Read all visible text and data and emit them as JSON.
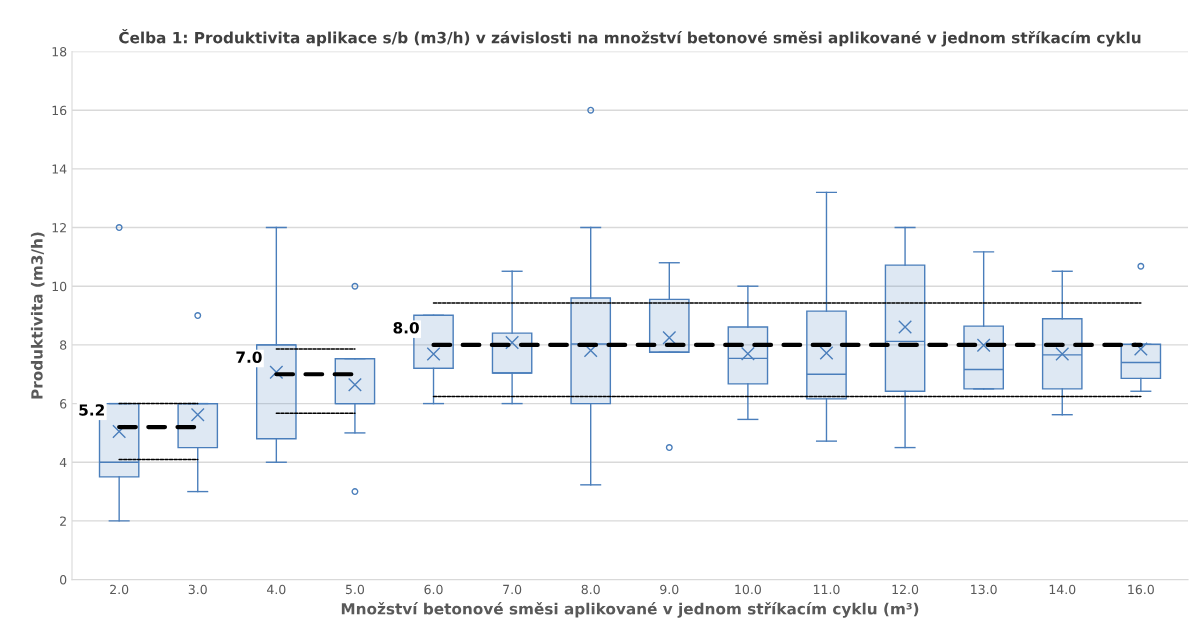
{
  "chart_data": {
    "type": "box",
    "title": "Čelba 1: Produktivita aplikace s/b (m3/h) v závislosti na množství betonové směsi aplikované v jednom stříkacím cyklu",
    "xlabel": "Množství betonové směsi aplikované v jednom stříkacím cyklu (m³)",
    "ylabel": "Produktivita (m3/h)",
    "categories": [
      "2.0",
      "3.0",
      "4.0",
      "5.0",
      "6.0",
      "7.0",
      "8.0",
      "9.0",
      "10.0",
      "11.0",
      "12.0",
      "13.0",
      "14.0",
      "16.0"
    ],
    "color": "#4a7ebb",
    "boxes": [
      {
        "low": 2.0,
        "q1": 3.5,
        "median": 4.0,
        "q3": 6.0,
        "high": 6.0,
        "mean": 5.05,
        "outliers": [
          12.0
        ]
      },
      {
        "low": 3.0,
        "q1": 4.5,
        "median": 6.0,
        "q3": 6.0,
        "high": 6.0,
        "mean": 5.62,
        "outliers": [
          9.0
        ]
      },
      {
        "low": 4.0,
        "q1": 4.8,
        "median": 8.0,
        "q3": 8.0,
        "high": 12.0,
        "mean": 7.07
      },
      {
        "low": 5.0,
        "q1": 6.0,
        "median": 6.0,
        "q3": 7.53,
        "high": 7.53,
        "mean": 6.64,
        "outliers": [
          10.0,
          3.0
        ]
      },
      {
        "low": 6.0,
        "q1": 7.2,
        "median": 7.2,
        "q3": 9.01,
        "high": 9.01,
        "mean": 7.69
      },
      {
        "low": 6.0,
        "q1": 7.04,
        "median": 7.04,
        "q3": 8.4,
        "high": 10.51,
        "mean": 8.08
      },
      {
        "low": 3.23,
        "q1": 6.0,
        "median": 8.03,
        "q3": 9.6,
        "high": 12.0,
        "mean": 7.81,
        "outliers": [
          16.0
        ]
      },
      {
        "low": 7.75,
        "q1": 7.75,
        "median": 7.75,
        "q3": 9.55,
        "high": 10.8,
        "mean": 8.24,
        "outliers": [
          4.5
        ]
      },
      {
        "low": 5.46,
        "q1": 6.67,
        "median": 7.54,
        "q3": 8.61,
        "high": 10.0,
        "mean": 7.7
      },
      {
        "low": 4.72,
        "q1": 6.16,
        "median": 7.0,
        "q3": 9.15,
        "high": 13.2,
        "mean": 7.72
      },
      {
        "low": 4.5,
        "q1": 6.42,
        "median": 8.12,
        "q3": 10.72,
        "high": 12.0,
        "mean": 8.61
      },
      {
        "low": 6.5,
        "q1": 6.5,
        "median": 7.16,
        "q3": 8.64,
        "high": 11.17,
        "mean": 7.99
      },
      {
        "low": 5.62,
        "q1": 6.5,
        "median": 7.66,
        "q3": 8.89,
        "high": 10.51,
        "mean": 7.69
      },
      {
        "low": 6.42,
        "q1": 6.86,
        "median": 7.4,
        "q3": 8.02,
        "high": 8.02,
        "mean": 7.86,
        "outliers": [
          10.68
        ]
      }
    ],
    "series": [
      {
        "type": "line",
        "x": [
          "2.0",
          "3.0"
        ],
        "values": [
          5.2,
          5.2
        ],
        "color": "#000000",
        "line_style": "dashed"
      },
      {
        "type": "line",
        "x": [
          "2.0",
          "3.0"
        ],
        "values": [
          6.0,
          6.0
        ],
        "color": "#000000",
        "line_style": "dotted"
      },
      {
        "type": "line",
        "x": [
          "2.0",
          "3.0"
        ],
        "values": [
          4.09,
          4.09
        ],
        "color": "#000000",
        "line_style": "dotted"
      },
      {
        "type": "line",
        "x": [
          "4.0",
          "5.0"
        ],
        "values": [
          7.0,
          7.0
        ],
        "color": "#000000",
        "line_style": "dashed"
      },
      {
        "type": "line",
        "x": [
          "4.0",
          "5.0"
        ],
        "values": [
          7.86,
          7.86
        ],
        "color": "#000000",
        "line_style": "dotted"
      },
      {
        "type": "line",
        "x": [
          "4.0",
          "5.0"
        ],
        "values": [
          5.67,
          5.67
        ],
        "color": "#000000",
        "line_style": "dotted"
      },
      {
        "type": "line",
        "x": [
          "6.0",
          "16.0"
        ],
        "values": [
          8.0,
          8.0
        ],
        "color": "#000000",
        "line_style": "dashed"
      },
      {
        "type": "line",
        "x": [
          "6.0",
          "16.0"
        ],
        "values": [
          9.43,
          9.43
        ],
        "color": "#000000",
        "line_style": "dotted"
      },
      {
        "type": "line",
        "x": [
          "6.0",
          "16.0"
        ],
        "values": [
          6.24,
          6.24
        ],
        "color": "#000000",
        "line_style": "dotted"
      }
    ],
    "annotations": [
      {
        "text": "5.2",
        "x": "2.0",
        "y": 5.2
      },
      {
        "text": "7.0",
        "x": "4.0",
        "y": 7.0
      },
      {
        "text": "8.0",
        "x": "6.0",
        "y": 8.0
      }
    ],
    "ylim": [
      0,
      18
    ],
    "yticks": [
      0,
      2,
      4,
      6,
      8,
      10,
      12,
      14,
      16,
      18
    ],
    "grid": "y",
    "legend": false
  }
}
